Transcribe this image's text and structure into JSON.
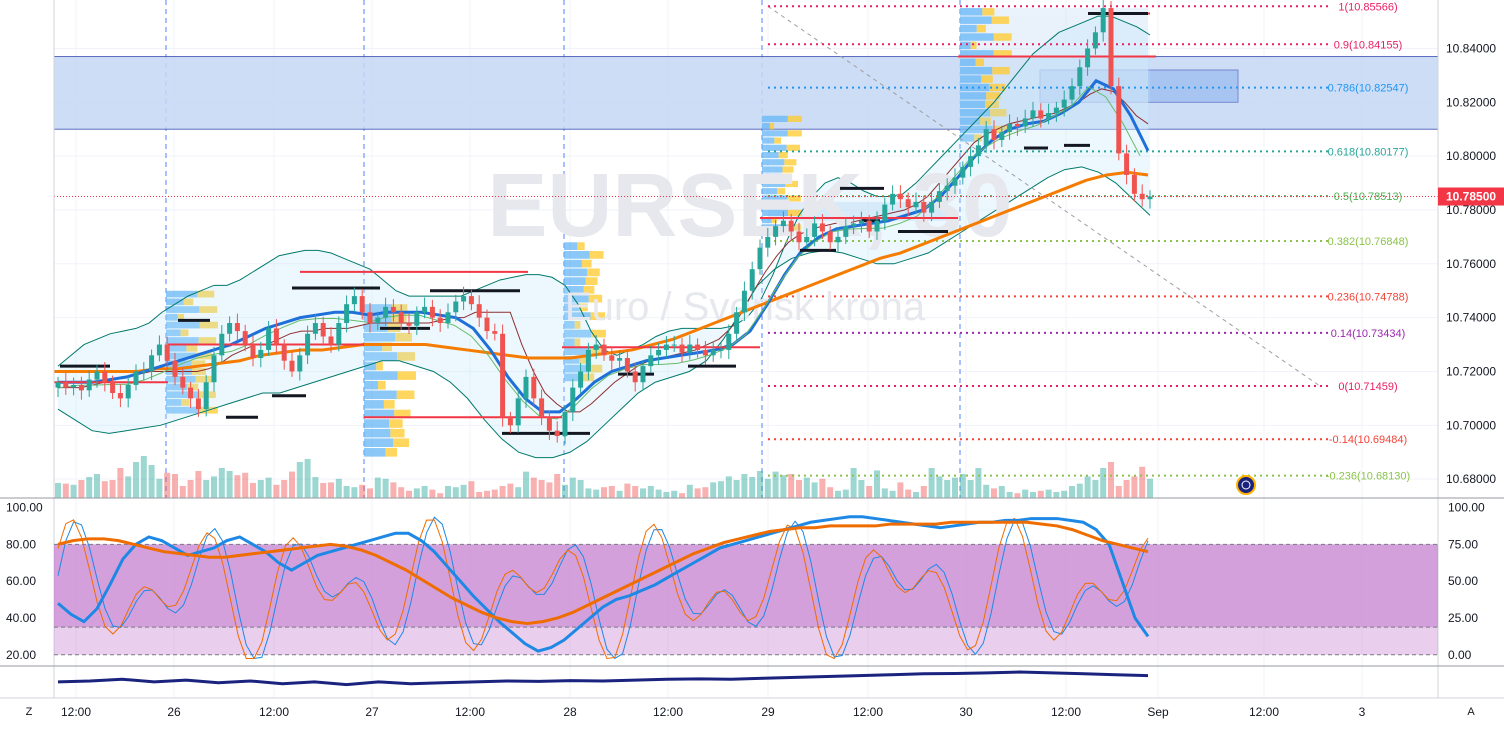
{
  "chart_data": [
    {
      "type": "candlestick",
      "symbol_watermark": "EURSEK, 30",
      "description_watermark": "Euro / Svensk krona",
      "x_ticks": [
        "12:00",
        "26",
        "12:00",
        "27",
        "12:00",
        "28",
        "12:00",
        "29",
        "12:00",
        "30",
        "12:00",
        "Sep",
        "12:00",
        "3"
      ],
      "y_ticks": [
        "10.68000",
        "10.70000",
        "10.72000",
        "10.74000",
        "10.76000",
        "10.78000",
        "10.80000",
        "10.82000",
        "10.84000"
      ],
      "ylim": [
        10.673,
        10.858
      ],
      "last_price": "10.78500",
      "last_price_value": 10.785,
      "fib_levels": [
        {
          "label": "1(10.85566)",
          "value": 10.85566,
          "color": "#e91e63"
        },
        {
          "label": "0.9(10.84155)",
          "value": 10.84155,
          "color": "#e91e63"
        },
        {
          "label": "0.786(10.82547)",
          "value": 10.82547,
          "color": "#2196f3"
        },
        {
          "label": "0.618(10.80177)",
          "value": 10.80177,
          "color": "#26a69a"
        },
        {
          "label": "0.5(10.78513)",
          "value": 10.78513,
          "color": "#4caf50"
        },
        {
          "label": "0.382(10.76848)",
          "value": 10.76848,
          "color": "#8bc34a"
        },
        {
          "label": "0.236(10.74788)",
          "value": 10.74788,
          "color": "#f44336"
        },
        {
          "label": "0.14(10.73434)",
          "value": 10.73434,
          "color": "#9c27b0"
        },
        {
          "label": "0(10.71459)",
          "value": 10.71459,
          "color": "#e91e63"
        },
        {
          "label": "-0.14(10.69484)",
          "value": 10.69484,
          "color": "#f44336"
        },
        {
          "label": "-0.236(10.68130)",
          "value": 10.6813,
          "color": "#8bc34a"
        }
      ],
      "zone": {
        "top": 10.837,
        "bottom": 10.81,
        "color": "#c5d8f5"
      },
      "closes": [
        10.716,
        10.714,
        10.715,
        10.713,
        10.717,
        10.72,
        10.716,
        10.712,
        10.71,
        10.715,
        10.72,
        10.72,
        10.726,
        10.73,
        10.724,
        10.718,
        10.714,
        10.71,
        10.706,
        10.716,
        10.726,
        10.734,
        10.738,
        10.735,
        10.73,
        10.725,
        10.728,
        10.736,
        10.73,
        10.724,
        10.72,
        10.726,
        10.734,
        10.738,
        10.733,
        10.73,
        10.738,
        10.745,
        10.748,
        10.742,
        10.738,
        10.74,
        10.744,
        10.742,
        10.738,
        10.737,
        10.742,
        10.744,
        10.74,
        10.738,
        10.742,
        10.746,
        10.748,
        10.745,
        10.74,
        10.735,
        10.734,
        10.703,
        10.7,
        10.71,
        10.718,
        10.71,
        10.703,
        10.698,
        10.696,
        10.705,
        10.714,
        10.72,
        10.728,
        10.73,
        10.726,
        10.724,
        10.725,
        10.72,
        10.716,
        10.722,
        10.726,
        10.728,
        10.73,
        10.73,
        10.727,
        10.73,
        10.728,
        10.726,
        10.728,
        10.728,
        10.734,
        10.742,
        10.75,
        10.758,
        10.766,
        10.77,
        10.774,
        10.776,
        10.772,
        10.768,
        10.77,
        10.775,
        10.772,
        10.768,
        10.77,
        10.774,
        10.775,
        10.776,
        10.772,
        10.776,
        10.782,
        10.786,
        10.784,
        10.781,
        10.783,
        10.779,
        10.783,
        10.787,
        10.789,
        10.792,
        10.796,
        10.8,
        10.804,
        10.81,
        10.806,
        10.809,
        10.812,
        10.811,
        10.814,
        10.817,
        10.814,
        10.816,
        10.818,
        10.821,
        10.826,
        10.833,
        10.84,
        10.846,
        10.855,
        10.826,
        10.801,
        10.793,
        10.786,
        10.784,
        10.785
      ],
      "volumes": [
        0.25,
        0.24,
        0.22,
        0.3,
        0.35,
        0.4,
        0.28,
        0.3,
        0.5,
        0.36,
        0.6,
        0.7,
        0.55,
        0.32,
        0.42,
        0.4,
        0.2,
        0.3,
        0.45,
        0.3,
        0.36,
        0.5,
        0.45,
        0.38,
        0.42,
        0.25,
        0.3,
        0.34,
        0.22,
        0.3,
        0.44,
        0.6,
        0.65,
        0.35,
        0.25,
        0.26,
        0.32,
        0.2,
        0.18,
        0.22,
        0.16,
        0.34,
        0.32,
        0.26,
        0.18,
        0.12,
        0.16,
        0.2,
        0.14,
        0.08,
        0.2,
        0.18,
        0.22,
        0.28,
        0.1,
        0.12,
        0.14,
        0.2,
        0.24,
        0.18,
        0.44,
        0.34,
        0.3,
        0.26,
        0.4,
        0.22,
        0.34,
        0.3,
        0.16,
        0.14,
        0.18,
        0.2,
        0.12,
        0.24,
        0.2,
        0.16,
        0.2,
        0.14,
        0.1,
        0.12,
        0.08,
        0.22,
        0.16,
        0.18,
        0.26,
        0.28,
        0.36,
        0.3,
        0.4,
        0.35,
        0.45,
        0.32,
        0.44,
        0.38,
        0.4,
        0.3,
        0.34,
        0.26,
        0.32,
        0.18,
        0.12,
        0.14,
        0.5,
        0.3,
        0.2,
        0.46,
        0.16,
        0.12,
        0.26,
        0.14,
        0.1,
        0.2,
        0.5,
        0.36,
        0.3,
        0.34,
        0.4,
        0.3,
        0.5,
        0.22,
        0.16,
        0.2,
        0.1,
        0.08,
        0.14,
        0.1,
        0.12,
        0.14,
        0.1,
        0.12,
        0.2,
        0.24,
        0.36,
        0.3,
        0.5,
        0.6,
        0.2,
        0.3,
        0.36,
        0.52,
        0.32,
        0.2,
        0.24
      ],
      "bb_mid": [
        10.714,
        10.714,
        10.714,
        10.715,
        10.716,
        10.717,
        10.718,
        10.719,
        10.72,
        10.72,
        10.72,
        10.72,
        10.72,
        10.721,
        10.723,
        10.726,
        10.728,
        10.73,
        10.73,
        10.732,
        10.734,
        10.735,
        10.735,
        10.736,
        10.736,
        10.736,
        10.737,
        10.738,
        10.738,
        10.738,
        10.738,
        10.738,
        10.738,
        10.739,
        10.74,
        10.74,
        10.742,
        10.742,
        10.742,
        10.742,
        10.73,
        10.72,
        10.712,
        10.708,
        10.705,
        10.705,
        10.708,
        10.712,
        10.716,
        10.719,
        10.722,
        10.724,
        10.725,
        10.726,
        10.727,
        10.728,
        10.73,
        10.732,
        10.736,
        10.742,
        10.75,
        10.757,
        10.763,
        10.768,
        10.771,
        10.773,
        10.774,
        10.775,
        10.775,
        10.776,
        10.777,
        10.778,
        10.779,
        10.78,
        10.782,
        10.785,
        10.79,
        10.795,
        10.8,
        10.805,
        10.808,
        10.81,
        10.812,
        10.813,
        10.814,
        10.815,
        10.816,
        10.818,
        10.82,
        10.823,
        10.825,
        10.824,
        10.82,
        10.815,
        10.812
      ],
      "bb_upper": [
        10.722,
        10.726,
        10.73,
        10.732,
        10.734,
        10.735,
        10.736,
        10.738,
        10.742,
        10.745,
        10.748,
        10.75,
        10.752,
        10.752,
        10.754,
        10.757,
        10.76,
        10.763,
        10.764,
        10.765,
        10.765,
        10.764,
        10.762,
        10.76,
        10.758,
        10.754,
        10.75,
        10.748,
        10.748,
        10.748,
        10.748,
        10.748,
        10.75,
        10.752,
        10.754,
        10.755,
        10.756,
        10.756,
        10.755,
        10.752,
        10.745,
        10.735,
        10.728,
        10.726,
        10.728,
        10.73,
        10.733,
        10.735,
        10.736,
        10.736,
        10.736,
        10.736,
        10.737,
        10.74,
        10.746,
        10.756,
        10.768,
        10.778,
        10.785,
        10.79,
        10.792,
        10.79,
        10.787,
        10.785,
        10.785,
        10.786,
        10.79,
        10.795,
        10.8,
        10.805,
        10.81,
        10.815,
        10.82,
        10.826,
        10.832,
        10.838,
        10.842,
        10.846,
        10.848,
        10.85,
        10.852,
        10.852,
        10.85,
        10.848,
        10.845
      ],
      "bb_lower": [
        10.706,
        10.702,
        10.698,
        10.697,
        10.698,
        10.699,
        10.7,
        10.702,
        10.704,
        10.706,
        10.708,
        10.71,
        10.712,
        10.712,
        10.714,
        10.716,
        10.718,
        10.72,
        10.722,
        10.724,
        10.724,
        10.722,
        10.72,
        10.716,
        10.71,
        10.702,
        10.695,
        10.69,
        10.688,
        10.688,
        10.69,
        10.694,
        10.7,
        10.706,
        10.712,
        10.716,
        10.718,
        10.72,
        10.724,
        10.732,
        10.742,
        10.752,
        10.758,
        10.762,
        10.764,
        10.765,
        10.764,
        10.762,
        10.76,
        10.76,
        10.762,
        10.764,
        10.768,
        10.772,
        10.776,
        10.78,
        10.784,
        10.788,
        10.792,
        10.795,
        10.796,
        10.794,
        10.79,
        10.784,
        10.778
      ],
      "ma_orange": [
        10.72,
        10.72,
        10.72,
        10.72,
        10.72,
        10.721,
        10.721,
        10.722,
        10.723,
        10.724,
        10.726,
        10.727,
        10.728,
        10.728,
        10.729,
        10.73,
        10.73,
        10.73,
        10.73,
        10.729,
        10.728,
        10.727,
        10.726,
        10.725,
        10.725,
        10.725,
        10.726,
        10.727,
        10.728,
        10.73,
        10.732,
        10.735,
        10.738,
        10.741,
        10.744,
        10.747,
        10.75,
        10.753,
        10.756,
        10.759,
        10.762,
        10.764,
        10.767,
        10.77,
        10.773,
        10.776,
        10.779,
        10.782,
        10.785,
        10.788,
        10.791,
        10.793,
        10.794,
        10.793
      ],
      "ma_blue": [
        10.716,
        10.716,
        10.716,
        10.717,
        10.718,
        10.72,
        10.722,
        10.724,
        10.726,
        10.728,
        10.73,
        10.733,
        10.736,
        10.738,
        10.74,
        10.741,
        10.742,
        10.742,
        10.741,
        10.742,
        10.742,
        10.742,
        10.741,
        10.74,
        10.736,
        10.728,
        10.718,
        10.71,
        10.705,
        10.705,
        10.71,
        10.716,
        10.72,
        10.722,
        10.724,
        10.725,
        10.726,
        10.727,
        10.728,
        10.73,
        10.735,
        10.745,
        10.756,
        10.765,
        10.77,
        10.773,
        10.774,
        10.775,
        10.776,
        10.778,
        10.78,
        10.785,
        10.792,
        10.8,
        10.806,
        10.81,
        10.812,
        10.813,
        10.816,
        10.82,
        10.828,
        10.825,
        10.815,
        10.802
      ]
    },
    {
      "type": "line",
      "y_ticks_left": [
        "100.00",
        "80.00",
        "60.00",
        "40.00",
        "20.00"
      ],
      "y_ticks_right": [
        "100.00",
        "75.00",
        "50.00",
        "25.00",
        "0.00"
      ],
      "band": [
        20,
        80
      ],
      "ylim": [
        15,
        103
      ],
      "series": [
        {
          "values": [
            48,
            42,
            38,
            45,
            58,
            72,
            80,
            84,
            82,
            78,
            74,
            76,
            78,
            82,
            84,
            80,
            76,
            70,
            66,
            70,
            74,
            76,
            78,
            80,
            82,
            84,
            86,
            86,
            82,
            76,
            68,
            60,
            52,
            45,
            38,
            32,
            26,
            22,
            24,
            28,
            34,
            40,
            46,
            50,
            52,
            55,
            58,
            62,
            66,
            70,
            74,
            78,
            80,
            82,
            84,
            86,
            88,
            90,
            92,
            93,
            94,
            95,
            95,
            94,
            93,
            92,
            91,
            90,
            89,
            90,
            91,
            92,
            92,
            93,
            93,
            94,
            94,
            94,
            93,
            92,
            88,
            80,
            60,
            40,
            30
          ],
          "color": "#1e88e5"
        },
        {
          "values": [
            80,
            82,
            83,
            83,
            82,
            80,
            78,
            76,
            75,
            74,
            73,
            73,
            74,
            75,
            76,
            77,
            78,
            79,
            80,
            79,
            77,
            74,
            70,
            66,
            61,
            56,
            51,
            47,
            43,
            40,
            38,
            37,
            38,
            40,
            43,
            47,
            51,
            55,
            59,
            63,
            67,
            71,
            75,
            78,
            81,
            83,
            85,
            87,
            88,
            89,
            89,
            90,
            90,
            90,
            90,
            91,
            91,
            91,
            91,
            92,
            92,
            92,
            92,
            92,
            92,
            91,
            90,
            88,
            85,
            82,
            80,
            78,
            76
          ],
          "color": "#ef6c00"
        }
      ]
    },
    {
      "type": "line",
      "series": [
        {
          "values": [
            0.45,
            0.5,
            0.6,
            0.45,
            0.55,
            0.4,
            0.5,
            0.35,
            0.45,
            0.3,
            0.45,
            0.35,
            0.4,
            0.45,
            0.5,
            0.48,
            0.52,
            0.5,
            0.55,
            0.6,
            0.62,
            0.6,
            0.65,
            0.7,
            0.75,
            0.8,
            0.85,
            0.9,
            0.92,
            0.95,
            1.0,
            0.95,
            0.9,
            0.85,
            0.8
          ],
          "color": "#1a237e"
        }
      ]
    }
  ],
  "toolbar": {
    "timezone_btn": "Z",
    "auto_btn": "A"
  }
}
